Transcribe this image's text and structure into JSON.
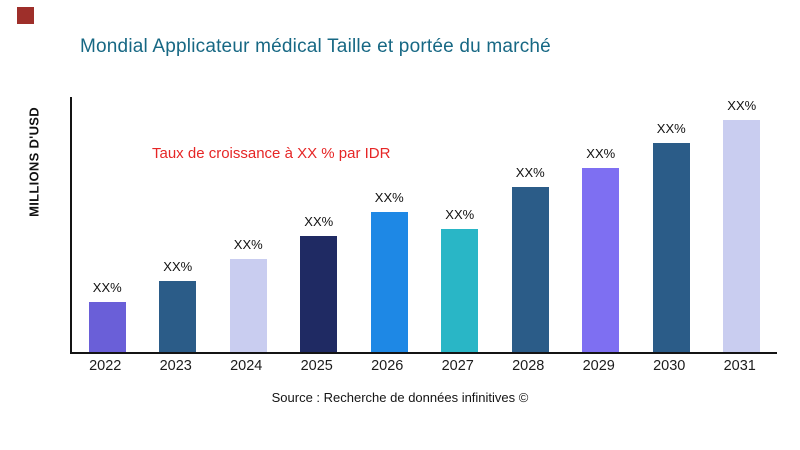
{
  "logo": {
    "color": "#9e2f2a"
  },
  "header": {
    "title": "Mondial Applicateur médical Taille et portée du marché",
    "title_color": "#176884"
  },
  "annotation": {
    "text": "Taux de croissance à XX % par IDR",
    "color": "#e62626"
  },
  "footer": {
    "source": "Source : Recherche de données infinitives ©"
  },
  "chart_data": {
    "type": "bar",
    "title": "Mondial Applicateur médical Taille et portée du marché",
    "xlabel": "",
    "ylabel": "MILLIONS D'USD",
    "ylim": [
      0,
      255
    ],
    "grid": false,
    "legend": "none",
    "categories": [
      "2022",
      "2023",
      "2024",
      "2025",
      "2026",
      "2027",
      "2028",
      "2029",
      "2030",
      "2031"
    ],
    "values": [
      50,
      71,
      93,
      116,
      140,
      123,
      165,
      184,
      209,
      232
    ],
    "bar_labels": [
      "XX%",
      "XX%",
      "XX%",
      "XX%",
      "XX%",
      "XX%",
      "XX%",
      "XX%",
      "XX%",
      "XX%"
    ],
    "bar_colors": [
      "#6a5fd8",
      "#2b5c88",
      "#c9cdf0",
      "#1f2a63",
      "#1e88e5",
      "#29b6c6",
      "#2b5c88",
      "#7e6ff2",
      "#2b5c88",
      "#c9cdf0"
    ]
  }
}
